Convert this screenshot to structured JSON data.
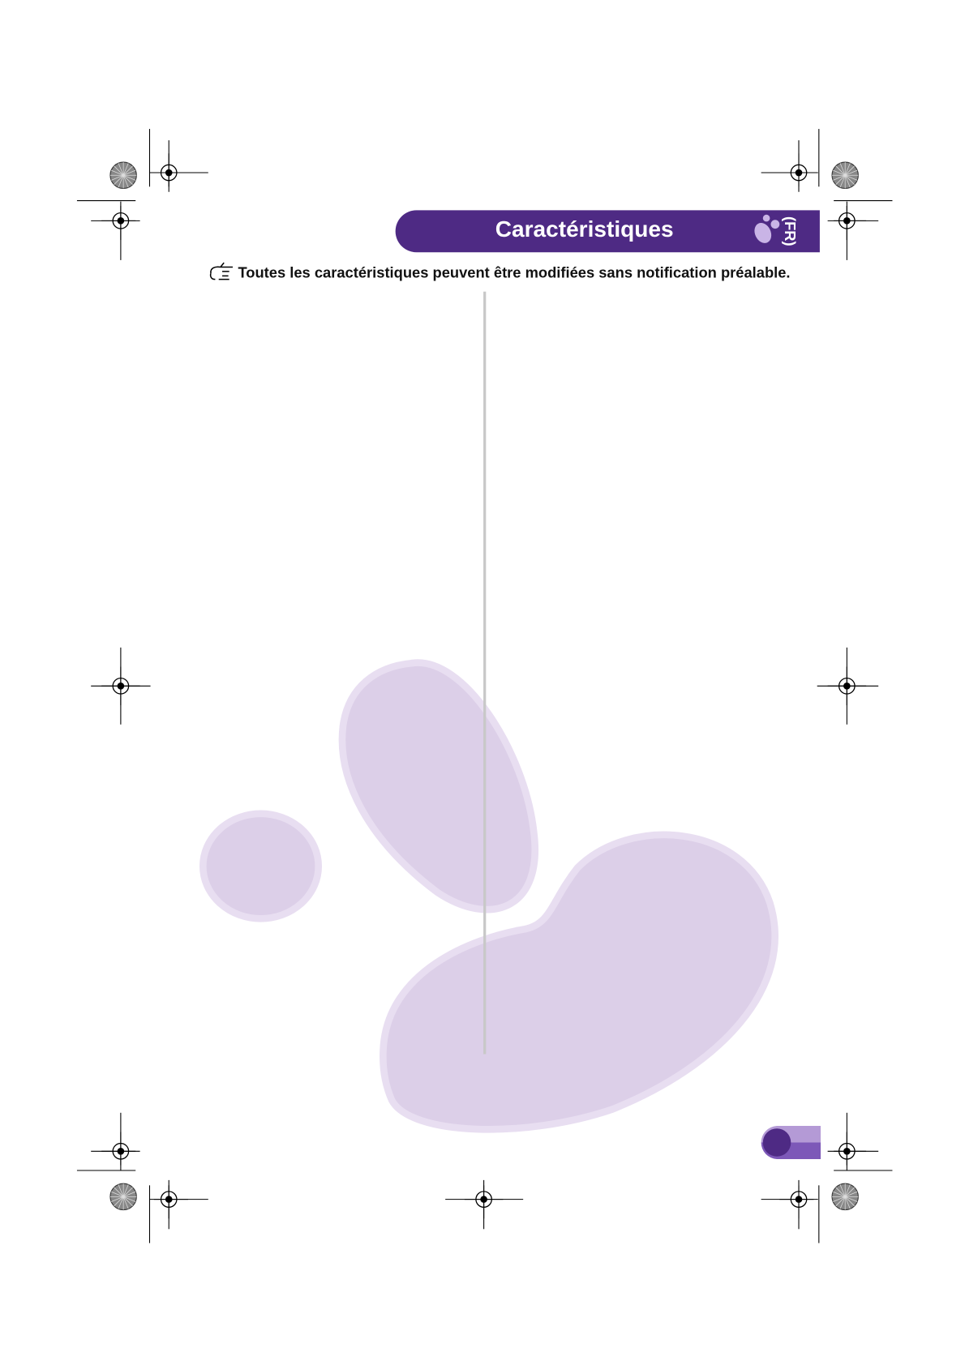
{
  "header": {
    "title": "Caractéristiques",
    "language": "(FR)"
  },
  "note": "Toutes les caractéristiques peuvent être modifiées sans notification préalable."
}
